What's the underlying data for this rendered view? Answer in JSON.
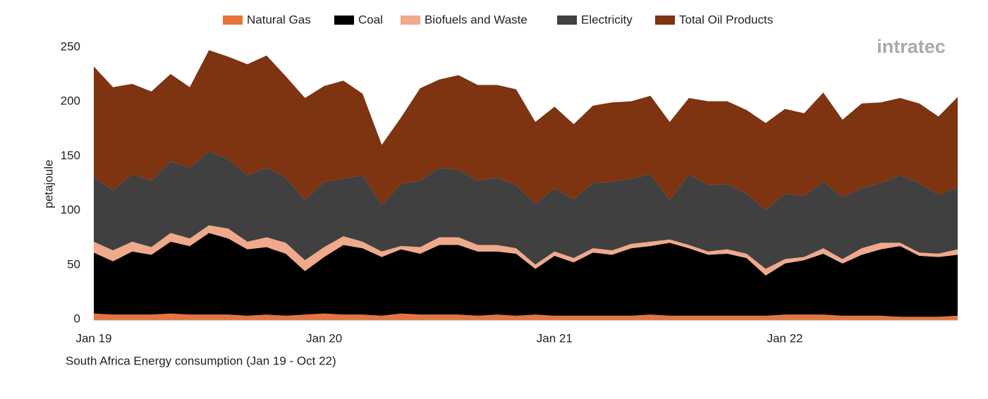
{
  "chart_data": {
    "type": "stacked_area",
    "title": "South Africa Energy consumption (Jan 19 - Oct 22)",
    "y_label": "petajoule",
    "watermark": "intratec",
    "legend": "top",
    "categories": [
      "Jan 19",
      null,
      null,
      null,
      null,
      null,
      null,
      null,
      null,
      null,
      null,
      null,
      "Jan 20",
      null,
      null,
      null,
      null,
      null,
      null,
      null,
      null,
      null,
      null,
      null,
      "Jan 21",
      null,
      null,
      null,
      null,
      null,
      null,
      null,
      null,
      null,
      null,
      null,
      "Jan 22",
      null,
      null,
      null,
      null,
      null,
      null,
      null,
      null,
      null
    ],
    "ylim": [
      0,
      250
    ],
    "yticks": [
      0,
      50,
      100,
      150,
      200,
      250
    ],
    "series": [
      {
        "name": "Natural Gas",
        "color": "#e8743b",
        "values": [
          6,
          5,
          5,
          5,
          6,
          5,
          5,
          5,
          4,
          5,
          4,
          5,
          6,
          5,
          5,
          4,
          6,
          5,
          5,
          5,
          4,
          5,
          4,
          5,
          4,
          4,
          4,
          4,
          4,
          5,
          4,
          4,
          4,
          4,
          4,
          4,
          5,
          5,
          5,
          4,
          4,
          4,
          3,
          3,
          3,
          4
        ]
      },
      {
        "name": "Coal",
        "color": "#000000",
        "values": [
          56,
          49,
          58,
          55,
          66,
          63,
          75,
          70,
          61,
          62,
          57,
          40,
          52,
          64,
          61,
          54,
          59,
          56,
          64,
          64,
          59,
          58,
          57,
          42,
          55,
          49,
          58,
          56,
          62,
          63,
          67,
          62,
          56,
          57,
          53,
          37,
          47,
          50,
          56,
          48,
          56,
          61,
          65,
          56,
          55,
          56
        ]
      },
      {
        "name": "Biofuels and Waste",
        "color": "#f0a98a",
        "values": [
          10,
          10,
          9,
          7,
          8,
          7,
          7,
          9,
          7,
          9,
          10,
          10,
          9,
          8,
          6,
          5,
          3,
          6,
          7,
          7,
          6,
          6,
          5,
          4,
          4,
          4,
          4,
          4,
          4,
          4,
          3,
          3,
          3,
          4,
          4,
          6,
          4,
          3,
          5,
          4,
          6,
          6,
          3,
          3,
          3,
          5
        ]
      },
      {
        "name": "Electricity",
        "color": "#404040",
        "values": [
          59,
          55,
          62,
          61,
          66,
          65,
          68,
          64,
          61,
          64,
          60,
          55,
          60,
          53,
          61,
          43,
          57,
          61,
          64,
          62,
          59,
          62,
          58,
          56,
          58,
          54,
          60,
          63,
          60,
          62,
          36,
          65,
          61,
          60,
          55,
          54,
          60,
          56,
          61,
          57,
          55,
          55,
          62,
          64,
          54,
          57
        ]
      },
      {
        "name": "Total Oil Products",
        "color": "#7e3311",
        "values": [
          102,
          95,
          83,
          82,
          80,
          74,
          93,
          94,
          102,
          103,
          93,
          94,
          88,
          90,
          75,
          55,
          61,
          85,
          81,
          87,
          88,
          85,
          88,
          75,
          75,
          69,
          71,
          73,
          71,
          72,
          72,
          70,
          77,
          76,
          77,
          80,
          78,
          76,
          82,
          71,
          78,
          74,
          71,
          73,
          72,
          83
        ]
      }
    ]
  }
}
